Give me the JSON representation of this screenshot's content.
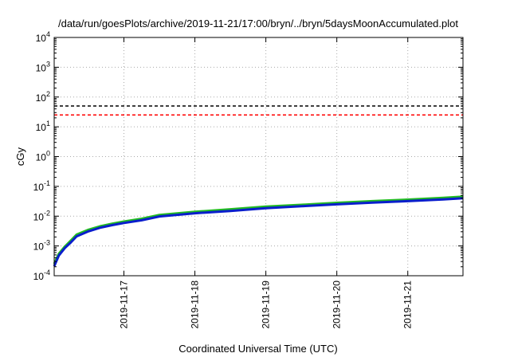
{
  "chart_data": {
    "type": "line",
    "title": "/data/run/goesPlots/archive/2019-11-21/17:00/bryn/../bryn/5daysMoonAccumulated.plot",
    "xlabel": "Coordinated Universal Time (UTC)",
    "ylabel": "cGy",
    "yscale": "log",
    "ylim": [
      0.0001,
      10000
    ],
    "xlim": [
      "2019-11-16T00:25",
      "2019-11-21T18:40"
    ],
    "grid": true,
    "x_ticks": [
      "2019-11-17",
      "2019-11-18",
      "2019-11-19",
      "2019-11-20",
      "2019-11-21"
    ],
    "y_ticks": [
      {
        "value": 0.0001,
        "base": "10",
        "exp": "-4"
      },
      {
        "value": 0.001,
        "base": "10",
        "exp": "-3"
      },
      {
        "value": 0.01,
        "base": "10",
        "exp": "-2"
      },
      {
        "value": 0.1,
        "base": "10",
        "exp": "-1"
      },
      {
        "value": 1,
        "base": "10",
        "exp": "0"
      },
      {
        "value": 10,
        "base": "10",
        "exp": "1"
      },
      {
        "value": 100,
        "base": "10",
        "exp": "2"
      },
      {
        "value": 1000,
        "base": "10",
        "exp": "3"
      },
      {
        "value": 10000,
        "base": "10",
        "exp": "4"
      }
    ],
    "reference_lines": [
      {
        "value": 50,
        "color": "#000000",
        "style": "dashed"
      },
      {
        "value": 25,
        "color": "#ff0000",
        "style": "dashed"
      }
    ],
    "series": [
      {
        "color": "#22bb22",
        "x": [
          "2019-11-16T00:25",
          "2019-11-16T02:00",
          "2019-11-16T04:00",
          "2019-11-16T06:00",
          "2019-11-16T08:00",
          "2019-11-16T12:00",
          "2019-11-16T16:00",
          "2019-11-16T20:00",
          "2019-11-17T00:00",
          "2019-11-17T06:00",
          "2019-11-17T12:00",
          "2019-11-18T00:00",
          "2019-11-18T12:00",
          "2019-11-19T00:00",
          "2019-11-19T12:00",
          "2019-11-20T00:00",
          "2019-11-20T12:00",
          "2019-11-21T00:00",
          "2019-11-21T12:00",
          "2019-11-21T18:40"
        ],
        "values": [
          0.00025,
          0.00055,
          0.00095,
          0.0015,
          0.0024,
          0.0035,
          0.0046,
          0.0056,
          0.0066,
          0.0082,
          0.011,
          0.014,
          0.017,
          0.021,
          0.024,
          0.028,
          0.032,
          0.036,
          0.041,
          0.045
        ]
      },
      {
        "color": "#0a1ecc",
        "x": [
          "2019-11-16T00:25",
          "2019-11-16T02:00",
          "2019-11-16T04:00",
          "2019-11-16T06:00",
          "2019-11-16T08:00",
          "2019-11-16T12:00",
          "2019-11-16T16:00",
          "2019-11-16T20:00",
          "2019-11-17T00:00",
          "2019-11-17T06:00",
          "2019-11-17T12:00",
          "2019-11-18T00:00",
          "2019-11-18T12:00",
          "2019-11-19T00:00",
          "2019-11-19T12:00",
          "2019-11-20T00:00",
          "2019-11-20T12:00",
          "2019-11-21T00:00",
          "2019-11-21T12:00",
          "2019-11-21T18:40"
        ],
        "values": [
          0.00021,
          0.00048,
          0.00085,
          0.0013,
          0.0021,
          0.0031,
          0.0041,
          0.005,
          0.0059,
          0.0073,
          0.0098,
          0.0125,
          0.015,
          0.0185,
          0.0215,
          0.025,
          0.0285,
          0.032,
          0.0365,
          0.04
        ]
      }
    ]
  }
}
